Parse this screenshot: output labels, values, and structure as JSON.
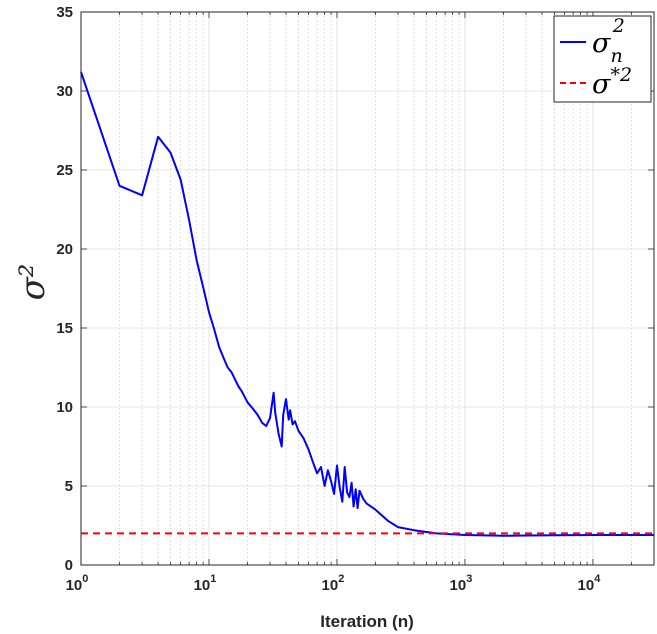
{
  "chart_data": {
    "type": "line",
    "xlabel": "Iteration (n)",
    "ylabel": "σ²",
    "xscale": "log",
    "xlim": [
      1,
      30000
    ],
    "ylim": [
      0,
      35
    ],
    "yticks": [
      0,
      5,
      10,
      15,
      20,
      25,
      30,
      35
    ],
    "xticks": [
      {
        "value": 1,
        "base": "10",
        "exp": "0"
      },
      {
        "value": 10,
        "base": "10",
        "exp": "1"
      },
      {
        "value": 100,
        "base": "10",
        "exp": "2"
      },
      {
        "value": 1000,
        "base": "10",
        "exp": "3"
      },
      {
        "value": 10000,
        "base": "10",
        "exp": "4"
      }
    ],
    "grid": true,
    "legend_position": "top-right",
    "series": [
      {
        "name": "σ_n²",
        "legend": {
          "base": "σ",
          "sub": "n",
          "sup": "2"
        },
        "color": "#0000ff",
        "style": "solid",
        "x": [
          1,
          2,
          3,
          4,
          5,
          6,
          7,
          8,
          9,
          10,
          11,
          12,
          13,
          14,
          15,
          17,
          18,
          20,
          22,
          24,
          26,
          28,
          30,
          32,
          33,
          35,
          37,
          38,
          40,
          42,
          43,
          45,
          47,
          50,
          55,
          60,
          65,
          70,
          75,
          80,
          85,
          90,
          95,
          100,
          105,
          110,
          115,
          120,
          125,
          130,
          135,
          140,
          145,
          150,
          160,
          170,
          200,
          250,
          300,
          400,
          600,
          1000,
          2000,
          3000,
          5000,
          10000,
          30000
        ],
        "y": [
          31.2,
          24.0,
          23.4,
          27.1,
          26.1,
          24.4,
          21.8,
          19.3,
          17.6,
          16.0,
          14.9,
          13.8,
          13.1,
          12.5,
          12.2,
          11.3,
          11.0,
          10.3,
          9.9,
          9.5,
          9.0,
          8.8,
          9.3,
          10.9,
          9.6,
          8.3,
          7.5,
          9.5,
          10.5,
          9.2,
          9.8,
          8.9,
          9.1,
          8.5,
          8.0,
          7.3,
          6.5,
          5.8,
          6.2,
          5.0,
          6.0,
          5.3,
          4.5,
          6.3,
          4.9,
          4.0,
          6.2,
          4.6,
          4.3,
          5.2,
          3.7,
          4.8,
          3.6,
          4.7,
          4.2,
          3.9,
          3.5,
          2.8,
          2.4,
          2.2,
          2.0,
          1.9,
          1.85,
          1.87,
          1.88,
          1.9,
          1.9
        ]
      },
      {
        "name": "σ*²",
        "legend": {
          "base": "σ",
          "sup": "*2"
        },
        "color": "#ff0000",
        "style": "dashed",
        "x": [
          1,
          30000
        ],
        "y": [
          2.0,
          2.0
        ]
      }
    ]
  }
}
